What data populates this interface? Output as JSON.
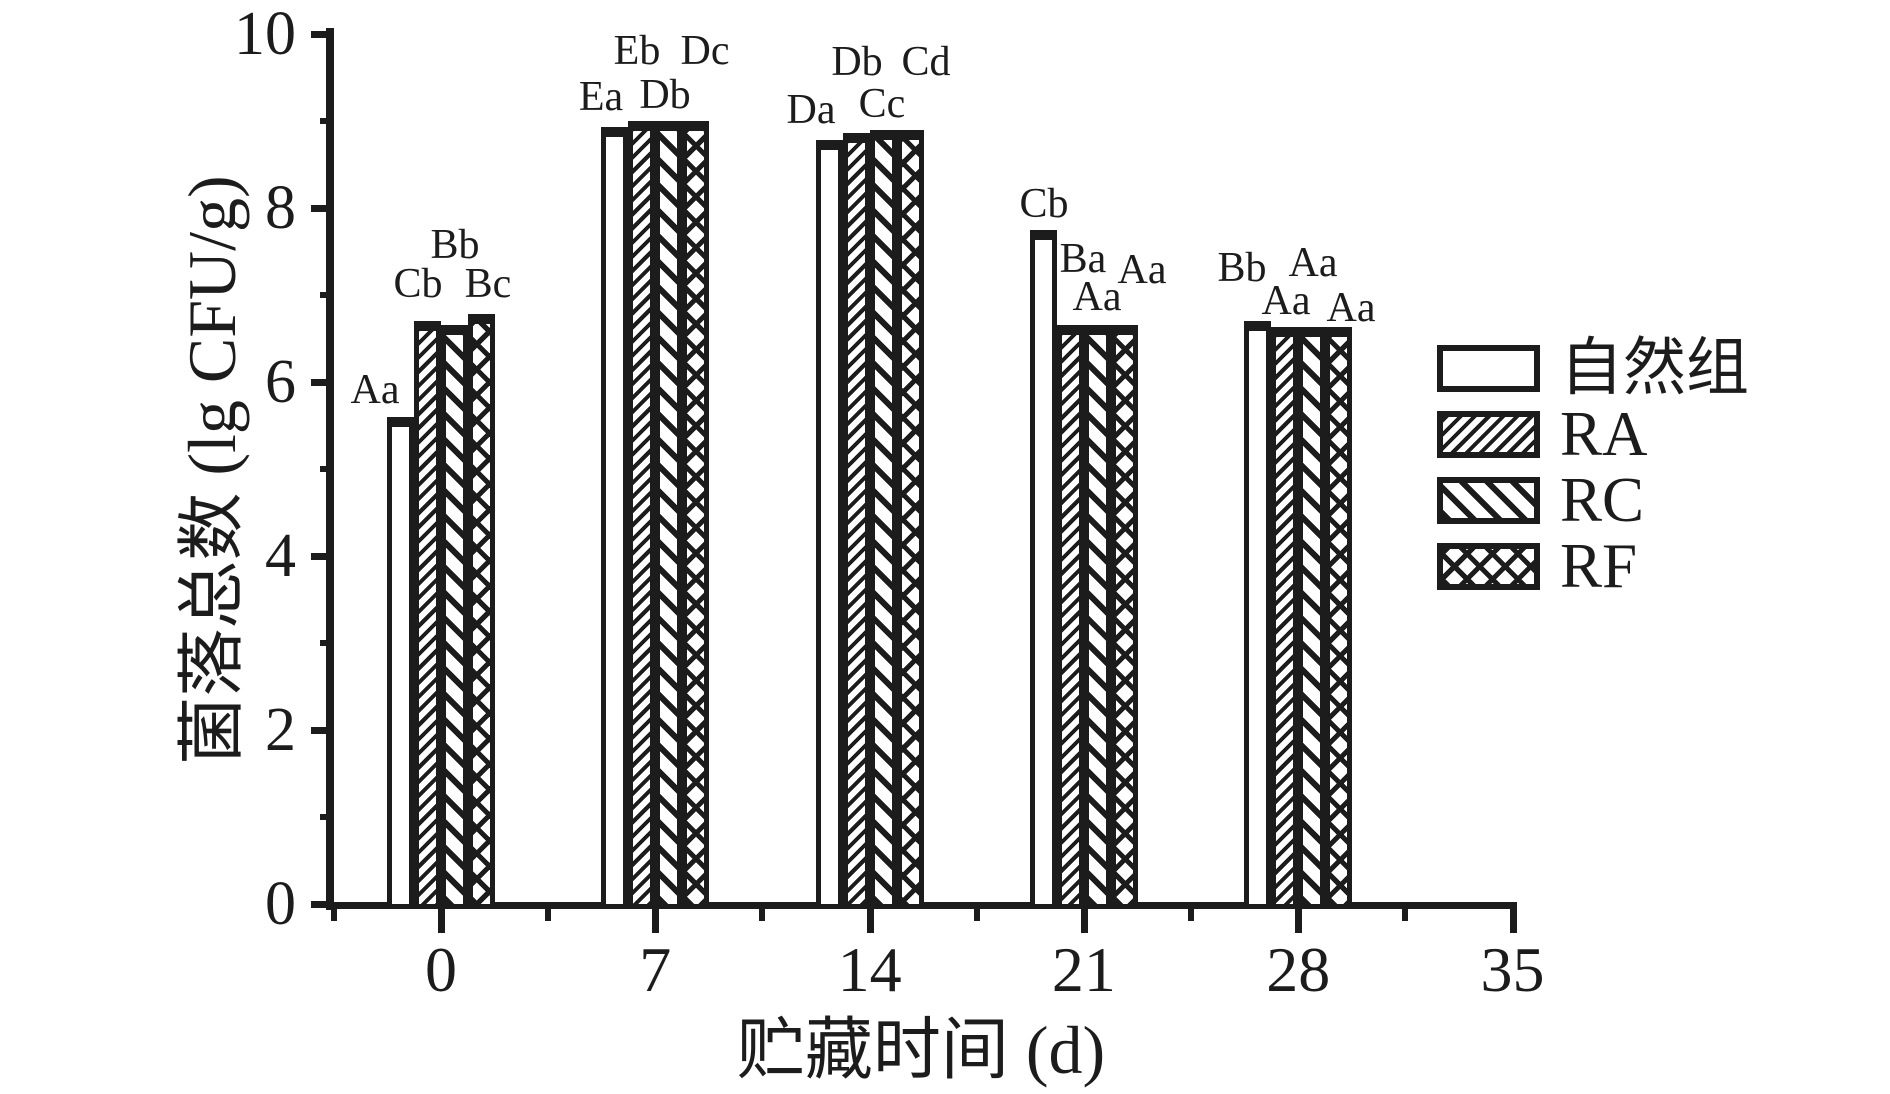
{
  "chart_data": {
    "type": "bar",
    "title": "",
    "xlabel": "贮藏时间 (d)",
    "ylabel": "菌落总数 (lg CFU/g)",
    "categories": [
      0,
      7,
      14,
      21,
      28
    ],
    "x_ticks": [
      "0",
      "7",
      "14",
      "21",
      "28",
      "35"
    ],
    "x_tick_values": [
      0,
      7,
      14,
      21,
      28,
      35
    ],
    "y_ticks": [
      "0",
      "2",
      "4",
      "6",
      "8",
      "10"
    ],
    "y_tick_values": [
      0,
      2,
      4,
      6,
      8,
      10
    ],
    "y_minor_ticks": [
      1,
      3,
      5,
      7,
      9
    ],
    "x_minor_ticks": [
      -3.5,
      3.5,
      10.5,
      17.5,
      24.5,
      31.5
    ],
    "ylim": [
      0,
      10
    ],
    "grid": false,
    "legend_position": "right",
    "series": [
      {
        "name": "自然组",
        "pattern": "plain",
        "values": [
          5.6,
          8.93,
          8.78,
          7.75,
          6.7
        ]
      },
      {
        "name": "RA",
        "pattern": "hatch-fwd",
        "values": [
          6.7,
          9.0,
          8.86,
          6.65,
          6.63
        ]
      },
      {
        "name": "RC",
        "pattern": "hatch-back",
        "values": [
          6.65,
          9.0,
          8.9,
          6.65,
          6.63
        ]
      },
      {
        "name": "RF",
        "pattern": "crosshatch",
        "values": [
          6.78,
          9.0,
          8.9,
          6.65,
          6.63
        ]
      }
    ],
    "significance_labels": [
      [
        "Aa",
        "Cb",
        "Bb",
        "Bc"
      ],
      [
        "Ea",
        "Eb",
        "Db",
        "Dc"
      ],
      [
        "Da",
        "Db",
        "Cc",
        "Cd"
      ],
      [
        "Cb",
        "Ba",
        "Aa",
        "Aa"
      ],
      [
        "Bb",
        "Aa",
        "Aa",
        "Aa"
      ]
    ],
    "legend": {
      "entries": [
        "自然组",
        "RA",
        "RC",
        "RF"
      ]
    }
  },
  "colors": {
    "ink": "#1c1c1c",
    "background": "#ffffff"
  }
}
